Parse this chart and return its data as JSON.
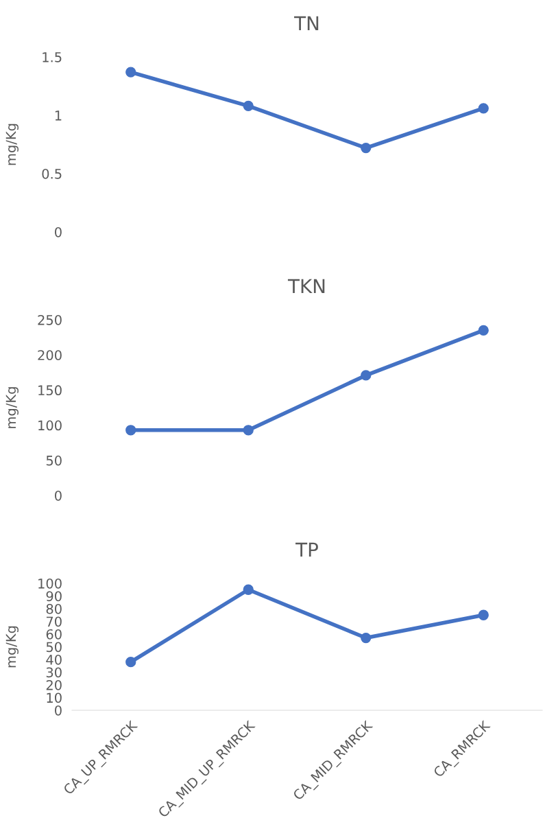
{
  "chart_data": [
    {
      "type": "line",
      "title": "TN",
      "ylabel": "mg/Kg",
      "categories": [
        null,
        null,
        null,
        null
      ],
      "series": [
        {
          "color": "#4472c4",
          "values": [
            1.37,
            1.08,
            0.72,
            1.06
          ]
        }
      ],
      "ylim": [
        0,
        1.5
      ],
      "yticks": [
        0,
        0.5,
        1,
        1.5
      ],
      "marker": "circle",
      "tick_labels": "y"
    },
    {
      "type": "line",
      "title": "TKN",
      "ylabel": "mg/Kg",
      "categories": [
        null,
        null,
        null,
        null
      ],
      "series": [
        {
          "color": "#4472c4",
          "values": [
            93,
            93,
            171,
            235
          ]
        }
      ],
      "ylim": [
        0,
        250
      ],
      "yticks": [
        0,
        50,
        100,
        150,
        200,
        250
      ],
      "marker": "circle",
      "tick_labels": "y"
    },
    {
      "type": "line",
      "title": "TP",
      "ylabel": "mg/Kg",
      "categories": [
        "CA_UP_RMRCK",
        "CA_MID_UP_RMRCK",
        "CA_MID_RMRCK",
        "CA_RMRCK"
      ],
      "series": [
        {
          "color": "#4472c4",
          "values": [
            38,
            95,
            57,
            75
          ]
        }
      ],
      "ylim": [
        0,
        100
      ],
      "yticks": [
        0,
        10,
        20,
        30,
        40,
        50,
        60,
        70,
        80,
        90,
        100
      ],
      "marker": "circle"
    }
  ]
}
